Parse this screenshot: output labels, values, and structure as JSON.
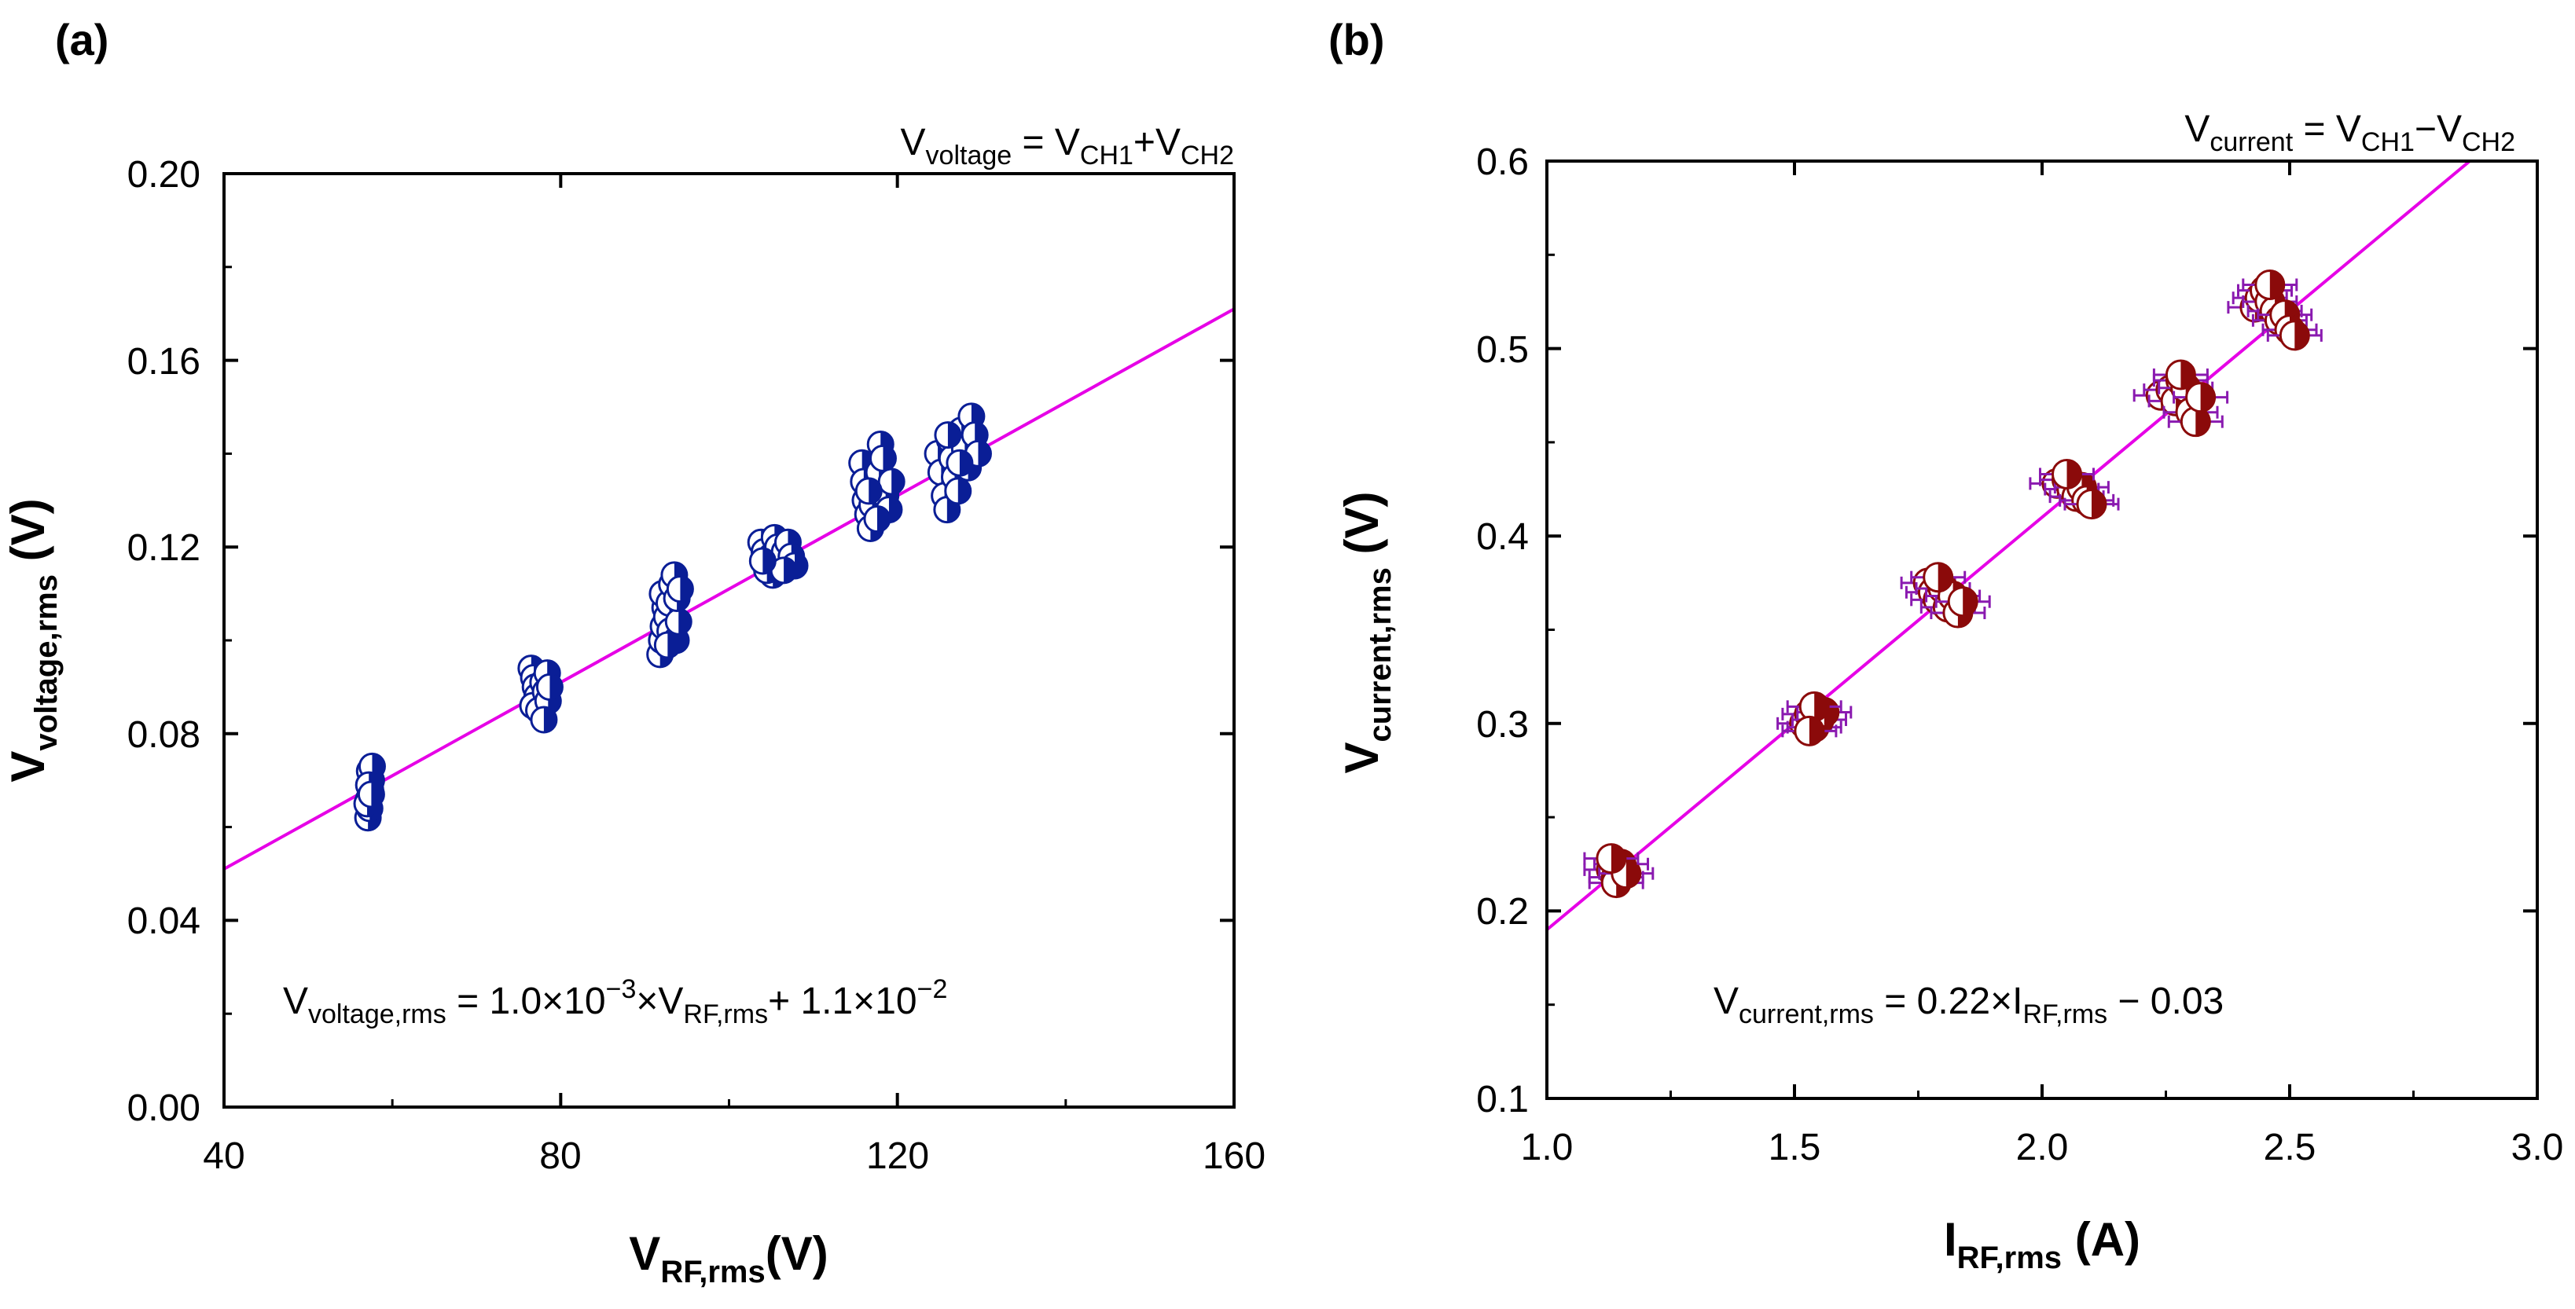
{
  "colors": {
    "axis": "#000000",
    "fit_line": "#E600E6",
    "panel_a_marker": "#0A1E96",
    "panel_b_marker": "#8B0A0A",
    "panel_b_errorbar": "#8A1AB0"
  },
  "chart_data": [
    {
      "type": "scatter",
      "panel_label": "(a)",
      "title": {
        "main": "V",
        "sub": "voltage",
        "rest": " = V",
        "sub2": "CH1",
        "rest2": "+V",
        "sub3": "CH2"
      },
      "xlabel": {
        "main": "V",
        "sub": "RF,rms",
        "unit": "(V)"
      },
      "ylabel": {
        "main": "V",
        "sub": "voltage,rms",
        "unit": " (V)"
      },
      "xlim": [
        40,
        160
      ],
      "ylim": [
        0.0,
        0.2
      ],
      "xticks": [
        40,
        80,
        120,
        160
      ],
      "xtick_labels": [
        "40",
        "80",
        "120",
        "160"
      ],
      "yticks": [
        0.0,
        0.04,
        0.08,
        0.12,
        0.16,
        0.2
      ],
      "ytick_labels": [
        "0.00",
        "0.04",
        "0.08",
        "0.12",
        "0.16",
        "0.20"
      ],
      "marker": "half-filled circle",
      "fit": {
        "slope": 0.001,
        "intercept": 0.011
      },
      "annotation": {
        "lhs": "V",
        "lhs_sub": "voltage,rms",
        "eq1": " = 1.0×10",
        "exp1": "−3",
        "mid": "×V",
        "mid_sub": "RF,rms",
        "eq2": "+ 1.1×10",
        "exp2": "−2"
      },
      "series": [
        {
          "name": "~57 V",
          "points": [
            [
              57.1,
              0.062
            ],
            [
              57.3,
              0.064
            ],
            [
              57.2,
              0.066
            ],
            [
              57.4,
              0.068
            ],
            [
              57.5,
              0.07
            ],
            [
              57.3,
              0.072
            ],
            [
              57.6,
              0.073
            ],
            [
              57.0,
              0.065
            ],
            [
              57.2,
              0.069
            ],
            [
              57.5,
              0.067
            ]
          ]
        },
        {
          "name": "~77 V",
          "points": [
            [
              76.5,
              0.094
            ],
            [
              76.8,
              0.092
            ],
            [
              77.0,
              0.09
            ],
            [
              77.2,
              0.088
            ],
            [
              76.7,
              0.086
            ],
            [
              77.4,
              0.085
            ],
            [
              77.9,
              0.091
            ],
            [
              78.2,
              0.089
            ],
            [
              78.5,
              0.087
            ],
            [
              78.0,
              0.083
            ],
            [
              78.4,
              0.093
            ],
            [
              78.7,
              0.09
            ]
          ]
        },
        {
          "name": "~93 V",
          "points": [
            [
              91.8,
              0.097
            ],
            [
              92.0,
              0.1
            ],
            [
              92.2,
              0.103
            ],
            [
              92.4,
              0.107
            ],
            [
              92.1,
              0.11
            ],
            [
              92.6,
              0.105
            ],
            [
              92.9,
              0.108
            ],
            [
              93.2,
              0.112
            ],
            [
              93.5,
              0.114
            ],
            [
              93.0,
              0.102
            ],
            [
              93.7,
              0.1
            ],
            [
              94.0,
              0.104
            ],
            [
              93.8,
              0.109
            ],
            [
              94.2,
              0.111
            ],
            [
              92.7,
              0.099
            ]
          ]
        },
        {
          "name": "~105 V",
          "points": [
            [
              103.8,
              0.121
            ],
            [
              104.2,
              0.119
            ],
            [
              104.6,
              0.116
            ],
            [
              105.0,
              0.118
            ],
            [
              105.4,
              0.122
            ],
            [
              105.8,
              0.12
            ],
            [
              106.2,
              0.117
            ],
            [
              106.6,
              0.119
            ],
            [
              107.0,
              0.121
            ],
            [
              107.4,
              0.118
            ],
            [
              107.8,
              0.116
            ],
            [
              105.2,
              0.114
            ],
            [
              104.5,
              0.115
            ],
            [
              106.5,
              0.115
            ],
            [
              104.0,
              0.117
            ]
          ]
        },
        {
          "name": "~117 V",
          "points": [
            [
              115.8,
              0.138
            ],
            [
              116.0,
              0.134
            ],
            [
              116.2,
              0.13
            ],
            [
              116.5,
              0.127
            ],
            [
              116.8,
              0.124
            ],
            [
              117.0,
              0.129
            ],
            [
              117.4,
              0.133
            ],
            [
              117.8,
              0.136
            ],
            [
              118.0,
              0.142
            ],
            [
              118.3,
              0.139
            ],
            [
              118.6,
              0.131
            ],
            [
              119.0,
              0.128
            ],
            [
              119.3,
              0.134
            ],
            [
              117.6,
              0.126
            ],
            [
              116.6,
              0.132
            ]
          ]
        },
        {
          "name": "~127 V",
          "points": [
            [
              124.8,
              0.14
            ],
            [
              125.2,
              0.136
            ],
            [
              125.6,
              0.131
            ],
            [
              125.9,
              0.128
            ],
            [
              126.2,
              0.143
            ],
            [
              126.5,
              0.139
            ],
            [
              126.8,
              0.135
            ],
            [
              127.2,
              0.132
            ],
            [
              127.6,
              0.145
            ],
            [
              128.0,
              0.141
            ],
            [
              128.4,
              0.137
            ],
            [
              128.8,
              0.148
            ],
            [
              129.2,
              0.144
            ],
            [
              129.6,
              0.14
            ],
            [
              127.4,
              0.138
            ],
            [
              126.0,
              0.144
            ]
          ]
        }
      ]
    },
    {
      "type": "scatter",
      "panel_label": "(b)",
      "title": {
        "main": "V",
        "sub": "current",
        "rest": " = V",
        "sub2": "CH1",
        "rest2": "−V",
        "sub3": "CH2"
      },
      "xlabel": {
        "main": "I",
        "sub": "RF,rms",
        "unit": " (A)"
      },
      "ylabel": {
        "main": "V",
        "sub": "current,rms",
        "unit": " (V)"
      },
      "xlim": [
        1.0,
        3.0
      ],
      "ylim": [
        0.1,
        0.6
      ],
      "xticks": [
        1.0,
        1.5,
        2.0,
        2.5,
        3.0
      ],
      "xtick_labels": [
        "1.0",
        "1.5",
        "2.0",
        "2.5",
        "3.0"
      ],
      "yticks": [
        0.1,
        0.2,
        0.3,
        0.4,
        0.5,
        0.6
      ],
      "ytick_labels": [
        "0.1",
        "0.2",
        "0.3",
        "0.4",
        "0.5",
        "0.6"
      ],
      "marker": "half-filled circle with x error bars",
      "fit": {
        "slope": 0.22,
        "intercept": -0.03
      },
      "annotation": {
        "lhs": "V",
        "lhs_sub": "current,rms",
        "eq1": " = 0.22×I",
        "eq1_sub": "RF,rms",
        "eq2": " − 0.03"
      },
      "series": [
        {
          "name": "~1.14 A",
          "points": [
            [
              1.13,
              0.222
            ],
            [
              1.14,
              0.218
            ],
            [
              1.15,
              0.225
            ],
            [
              1.14,
              0.215
            ],
            [
              1.16,
              0.22
            ],
            [
              1.13,
              0.228
            ]
          ]
        },
        {
          "name": "~1.54 A",
          "points": [
            [
              1.52,
              0.3
            ],
            [
              1.53,
              0.305
            ],
            [
              1.54,
              0.298
            ],
            [
              1.55,
              0.302
            ],
            [
              1.56,
              0.306
            ],
            [
              1.54,
              0.309
            ],
            [
              1.53,
              0.296
            ]
          ]
        },
        {
          "name": "~1.80 A",
          "points": [
            [
              1.77,
              0.375
            ],
            [
              1.78,
              0.37
            ],
            [
              1.79,
              0.366
            ],
            [
              1.8,
              0.372
            ],
            [
              1.81,
              0.362
            ],
            [
              1.82,
              0.368
            ],
            [
              1.83,
              0.359
            ],
            [
              1.84,
              0.365
            ],
            [
              1.79,
              0.378
            ]
          ]
        },
        {
          "name": "~2.06 A",
          "points": [
            [
              2.03,
              0.428
            ],
            [
              2.05,
              0.43
            ],
            [
              2.06,
              0.425
            ],
            [
              2.07,
              0.421
            ],
            [
              2.08,
              0.426
            ],
            [
              2.09,
              0.419
            ],
            [
              2.1,
              0.417
            ],
            [
              2.05,
              0.433
            ]
          ]
        },
        {
          "name": "~2.28 A",
          "points": [
            [
              2.24,
              0.475
            ],
            [
              2.26,
              0.478
            ],
            [
              2.27,
              0.472
            ],
            [
              2.28,
              0.483
            ],
            [
              2.29,
              0.479
            ],
            [
              2.3,
              0.466
            ],
            [
              2.31,
              0.461
            ],
            [
              2.32,
              0.474
            ],
            [
              2.28,
              0.486
            ]
          ]
        },
        {
          "name": "~2.47 A",
          "points": [
            [
              2.43,
              0.522
            ],
            [
              2.44,
              0.527
            ],
            [
              2.45,
              0.531
            ],
            [
              2.46,
              0.525
            ],
            [
              2.47,
              0.52
            ],
            [
              2.48,
              0.515
            ],
            [
              2.49,
              0.518
            ],
            [
              2.5,
              0.51
            ],
            [
              2.51,
              0.507
            ],
            [
              2.46,
              0.534
            ]
          ]
        }
      ]
    }
  ]
}
